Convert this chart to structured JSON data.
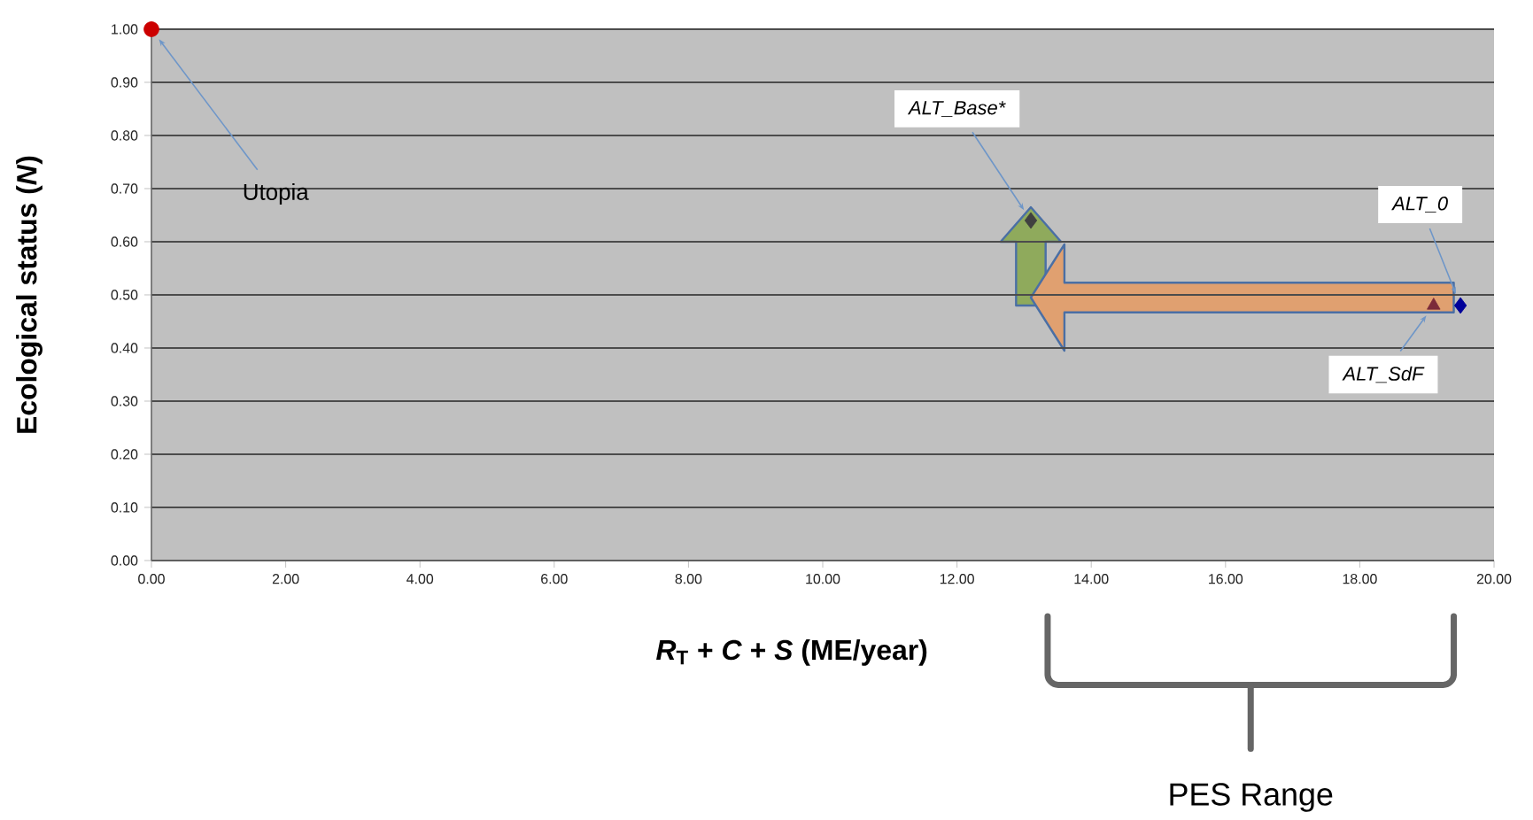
{
  "chart_data": {
    "type": "scatter",
    "xlabel": "*R*$_{T}$ + *C* + *S* (ME/year)",
    "ylabel": "Ecological status (*N*)",
    "xlim": [
      0,
      20
    ],
    "ylim": [
      0,
      1
    ],
    "xticks": [
      {
        "value": 0,
        "label": "0.00"
      },
      {
        "value": 2,
        "label": "2.00"
      },
      {
        "value": 4,
        "label": "4.00"
      },
      {
        "value": 6,
        "label": "6.00"
      },
      {
        "value": 8,
        "label": "8.00"
      },
      {
        "value": 10,
        "label": "10.00"
      },
      {
        "value": 12,
        "label": "12.00"
      },
      {
        "value": 14,
        "label": "14.00"
      },
      {
        "value": 16,
        "label": "16.00"
      },
      {
        "value": 18,
        "label": "18.00"
      },
      {
        "value": 20,
        "label": "20.00"
      }
    ],
    "yticks": [
      {
        "value": 0,
        "label": "0.00"
      },
      {
        "value": 0.1,
        "label": "0.10"
      },
      {
        "value": 0.2,
        "label": "0.20"
      },
      {
        "value": 0.3,
        "label": "0.30"
      },
      {
        "value": 0.4,
        "label": "0.40"
      },
      {
        "value": 0.5,
        "label": "0.50"
      },
      {
        "value": 0.6,
        "label": "0.60"
      },
      {
        "value": 0.7,
        "label": "0.70"
      },
      {
        "value": 0.8,
        "label": "0.80"
      },
      {
        "value": 0.9,
        "label": "0.90"
      },
      {
        "value": 1,
        "label": "1.00"
      }
    ],
    "grid": "y",
    "series": [
      {
        "name": "Utopia",
        "color": "#cc0000",
        "marker": "circle",
        "x": [
          0
        ],
        "values": [
          1.0
        ]
      },
      {
        "name": "ALT_Base*",
        "color": "#404040",
        "marker": "diamond",
        "x": [
          13.1
        ],
        "values": [
          0.64
        ]
      },
      {
        "name": "ALT_SdF",
        "color": "#7b2a3a",
        "marker": "triangle",
        "x": [
          19.1
        ],
        "values": [
          0.48
        ]
      },
      {
        "name": "ALT_0",
        "color": "#000099",
        "marker": "diamond",
        "x": [
          19.5
        ],
        "values": [
          0.48
        ]
      }
    ],
    "annotations": [
      "PES Range"
    ]
  }
}
